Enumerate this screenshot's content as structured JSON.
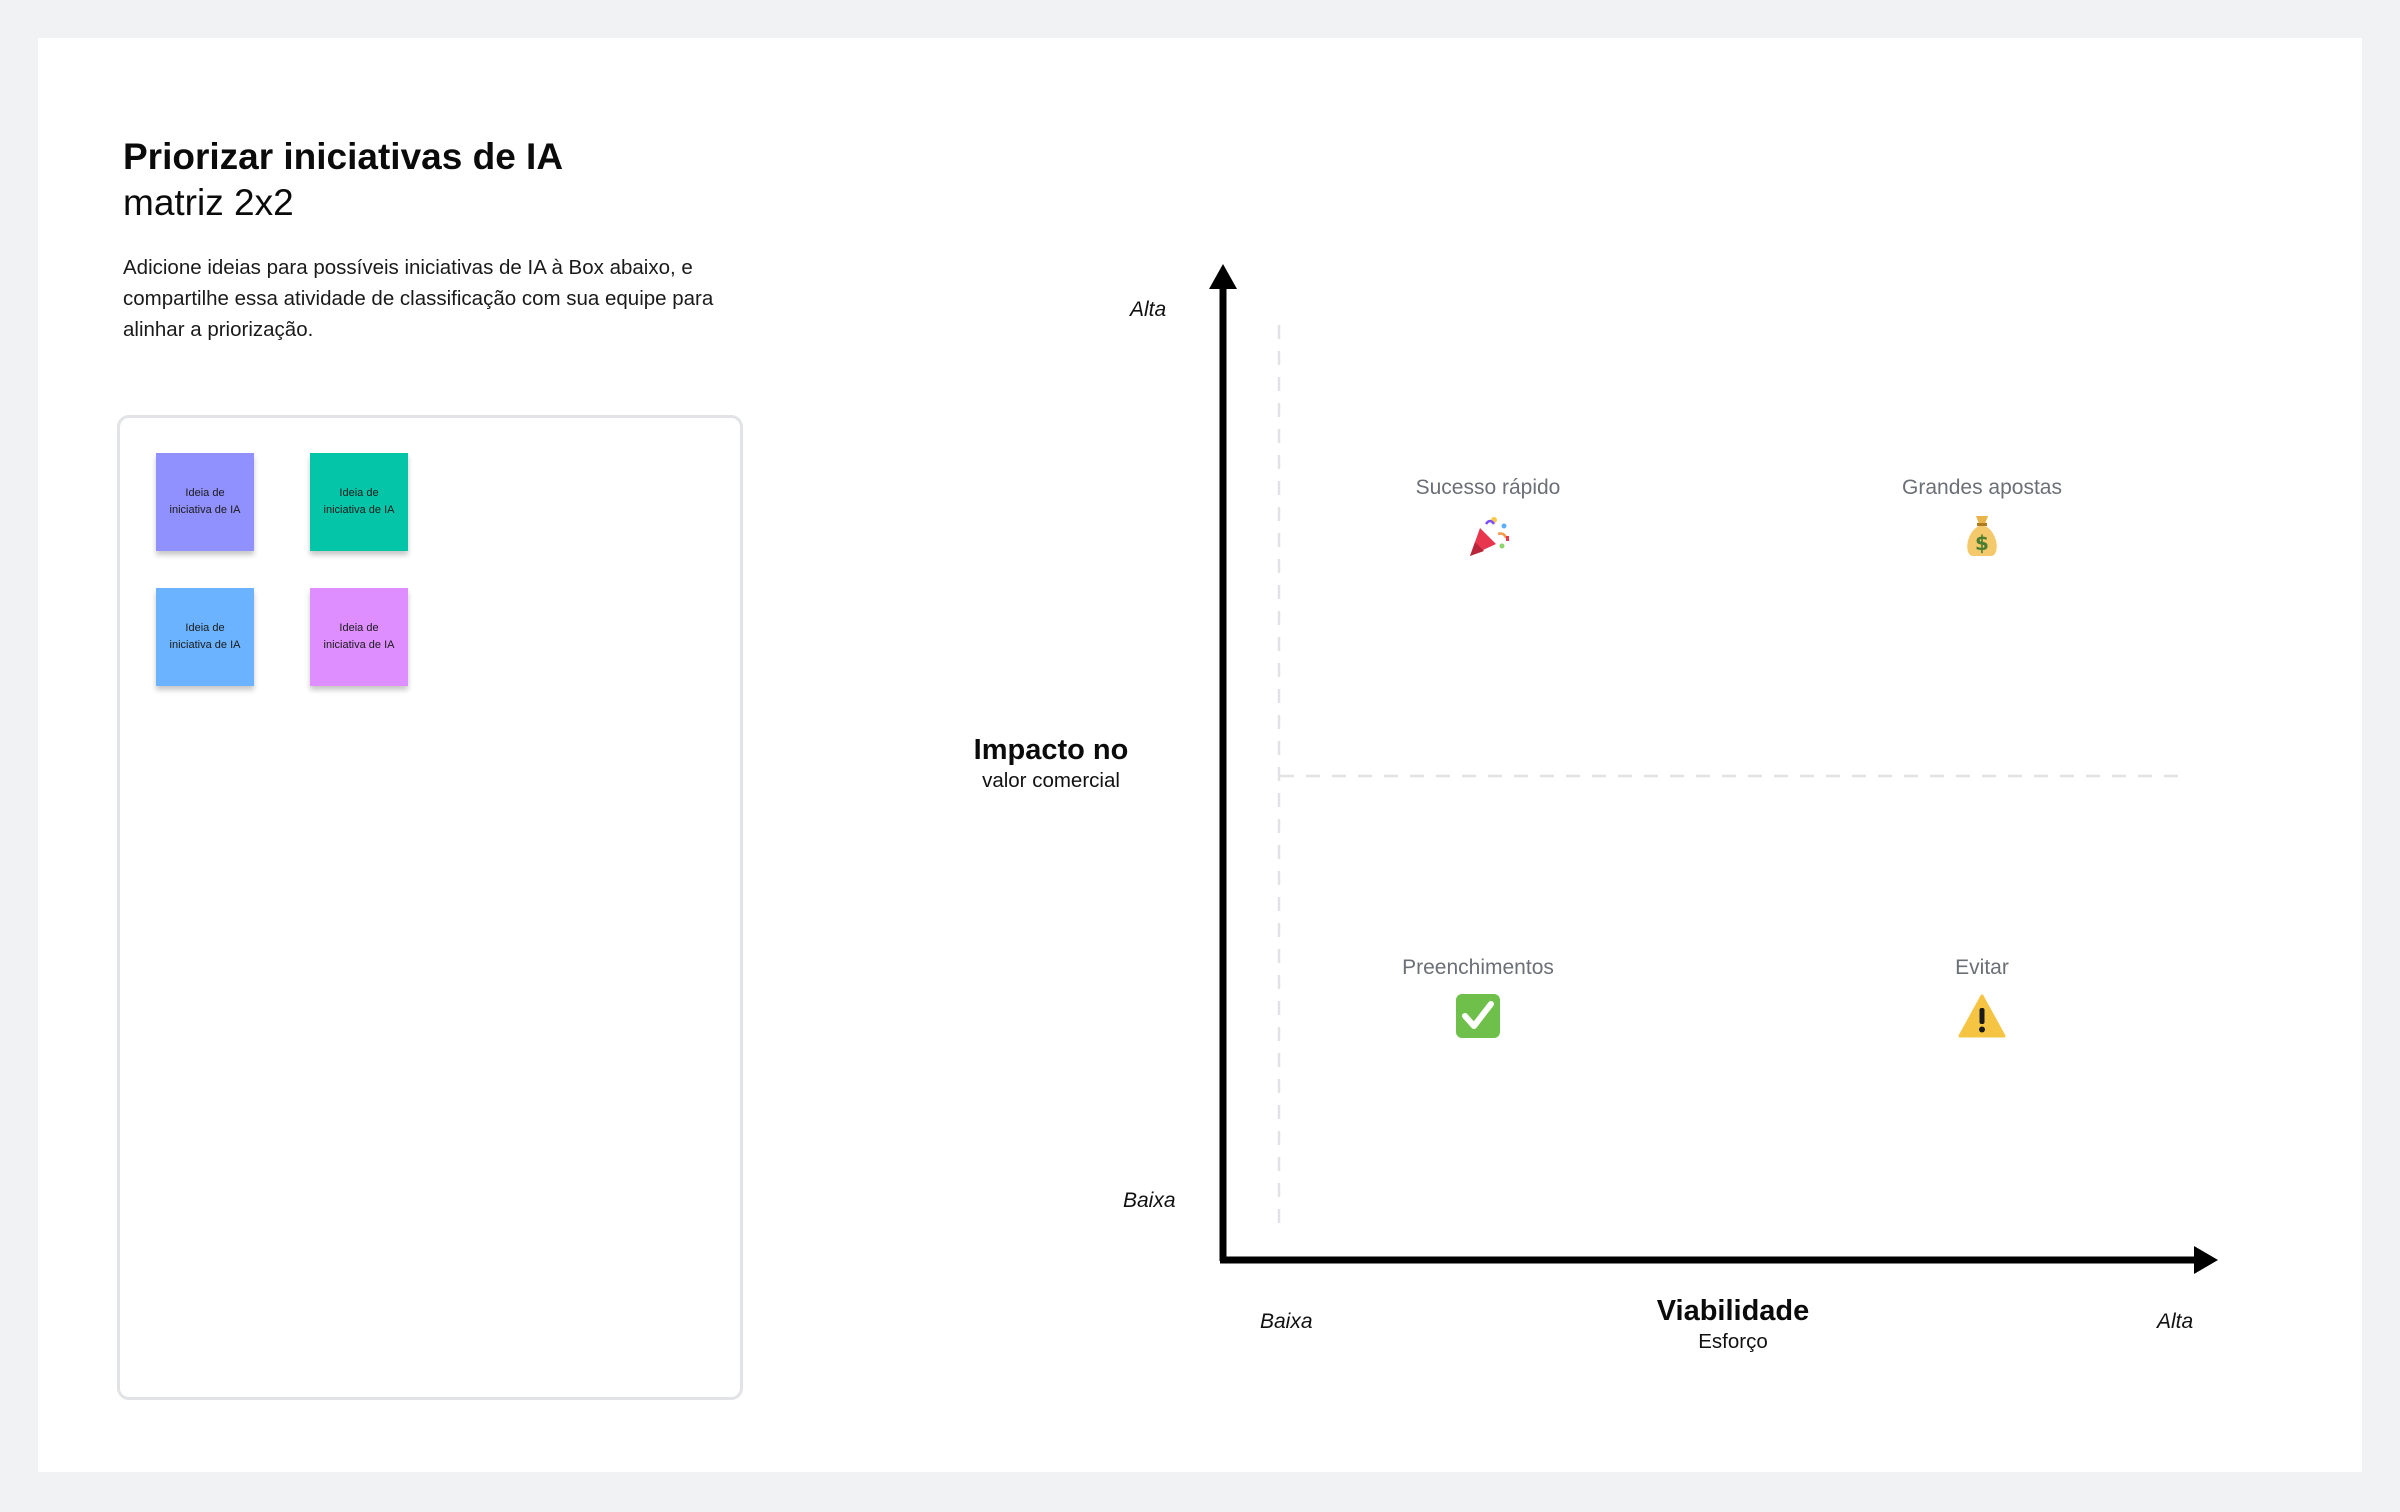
{
  "header": {
    "title": "Priorizar iniciativas de IA",
    "subtitle": "matriz 2x2",
    "description": "Adicione ideias para possíveis iniciativas de IA à Box abaixo, e compartilhe essa atividade de classificação com sua equipe para alinhar a priorização."
  },
  "ideas": [
    {
      "label": "Ideia de iniciativa de IA",
      "color": "#9090ff"
    },
    {
      "label": "Ideia de iniciativa de IA",
      "color": "#05c5a8"
    },
    {
      "label": "Ideia de iniciativa de IA",
      "color": "#6bb3ff"
    },
    {
      "label": "Ideia de iniciativa de IA",
      "color": "#df8eff"
    }
  ],
  "matrix": {
    "y_axis": {
      "title": "Impacto no",
      "subtitle": "valor comercial",
      "high": "Alta",
      "low": "Baixa"
    },
    "x_axis": {
      "title": "Viabilidade",
      "subtitle": "Esforço",
      "low": "Baixa",
      "high": "Alta"
    },
    "quadrants": {
      "top_left": {
        "label": "Sucesso rápido",
        "icon": "party-popper-icon"
      },
      "top_right": {
        "label": "Grandes apostas",
        "icon": "money-bag-icon"
      },
      "bottom_left": {
        "label": "Preenchimentos",
        "icon": "check-mark-icon"
      },
      "bottom_right": {
        "label": "Evitar",
        "icon": "warning-icon"
      }
    }
  }
}
